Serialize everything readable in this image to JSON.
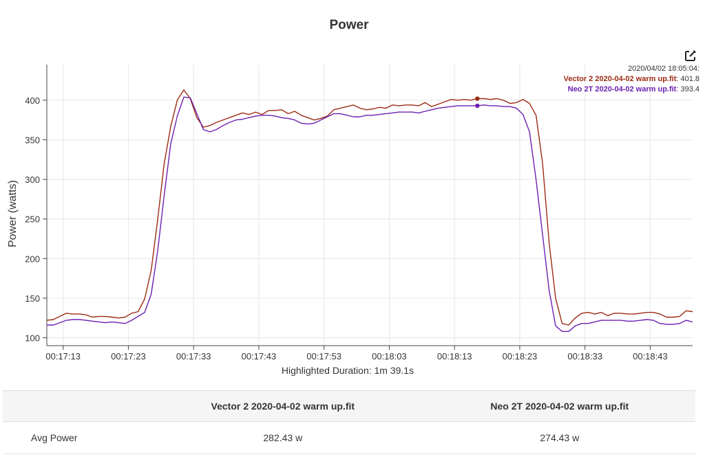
{
  "chart_data": {
    "type": "line",
    "title": "Power",
    "ylabel": "Power (watts)",
    "xlabel": "",
    "ylim": [
      90,
      445
    ],
    "xlim": [
      1030.5,
      1129.5
    ],
    "yticks": [
      100,
      150,
      200,
      250,
      300,
      350,
      400
    ],
    "xticks": [
      1033,
      1043,
      1053,
      1063,
      1073,
      1083,
      1093,
      1103,
      1113,
      1123
    ],
    "xtick_labels": [
      "00:17:13",
      "00:17:23",
      "00:17:33",
      "00:17:43",
      "00:17:53",
      "00:18:03",
      "00:18:13",
      "00:18:23",
      "00:18:33",
      "00:18:43"
    ],
    "grid": true,
    "series": [
      {
        "name": "Vector 2 2020-04-02 warm up.fit",
        "color": "#9b2a12",
        "x": [
          1030.5,
          1031.5,
          1032.5,
          1033.5,
          1034.5,
          1035.5,
          1036.5,
          1037.5,
          1038.5,
          1039.5,
          1040.5,
          1041.5,
          1042.5,
          1043.5,
          1044.5,
          1045.5,
          1046.5,
          1047.5,
          1048.5,
          1049.5,
          1050.5,
          1051.5,
          1052.5,
          1053.5,
          1054.5,
          1055.5,
          1056.5,
          1057.5,
          1058.5,
          1059.5,
          1060.5,
          1061.5,
          1062.5,
          1063.5,
          1064.5,
          1065.5,
          1066.5,
          1067.5,
          1068.5,
          1069.5,
          1070.5,
          1071.5,
          1072.5,
          1073.5,
          1074.5,
          1075.5,
          1076.5,
          1077.5,
          1078.5,
          1079.5,
          1080.5,
          1081.5,
          1082.5,
          1083.5,
          1084.5,
          1085.5,
          1086.5,
          1087.5,
          1088.5,
          1089.5,
          1090.5,
          1091.5,
          1092.5,
          1093.5,
          1094.5,
          1095.5,
          1096.5,
          1097.5,
          1098.5,
          1099.5,
          1100.5,
          1101.5,
          1102.5,
          1103.5,
          1104.5,
          1105.5,
          1106.5,
          1107.5,
          1108.5,
          1109.5,
          1110.5,
          1111.5,
          1112.5,
          1113.5,
          1114.5,
          1115.5,
          1116.5,
          1117.5,
          1118.5,
          1119.5,
          1120.5,
          1121.5,
          1122.5,
          1123.5,
          1124.5,
          1125.5,
          1126.5,
          1127.5,
          1128.5,
          1129.5
        ],
        "values": [
          122,
          123,
          127,
          131,
          130,
          130,
          129,
          126,
          127,
          127,
          126,
          125,
          126,
          131,
          133,
          149,
          185,
          250,
          320,
          367,
          400,
          413,
          402,
          378,
          366,
          368,
          372,
          375,
          378,
          381,
          384,
          382,
          385,
          382,
          387,
          387,
          388,
          383,
          386,
          381,
          378,
          375,
          377,
          380,
          388,
          390,
          392,
          394,
          390,
          388,
          389,
          391,
          390,
          394,
          393,
          394,
          394,
          393,
          397,
          392,
          395,
          398,
          401,
          400,
          401,
          400,
          402,
          402,
          401,
          402,
          400,
          396,
          397,
          401,
          396,
          381,
          320,
          220,
          150,
          118,
          116,
          125,
          131,
          132,
          130,
          132,
          128,
          131,
          131,
          130,
          130,
          131,
          132,
          132,
          130,
          126,
          126,
          127,
          134,
          133
        ]
      },
      {
        "name": "Neo 2T 2020-04-02 warm up.fit",
        "color": "#6a1fb0",
        "x": [
          1030.5,
          1031.5,
          1032.5,
          1033.5,
          1034.5,
          1035.5,
          1036.5,
          1037.5,
          1038.5,
          1039.5,
          1040.5,
          1041.5,
          1042.5,
          1043.5,
          1044.5,
          1045.5,
          1046.5,
          1047.5,
          1048.5,
          1049.5,
          1050.5,
          1051.5,
          1052.5,
          1053.5,
          1054.5,
          1055.5,
          1056.5,
          1057.5,
          1058.5,
          1059.5,
          1060.5,
          1061.5,
          1062.5,
          1063.5,
          1064.5,
          1065.5,
          1066.5,
          1067.5,
          1068.5,
          1069.5,
          1070.5,
          1071.5,
          1072.5,
          1073.5,
          1074.5,
          1075.5,
          1076.5,
          1077.5,
          1078.5,
          1079.5,
          1080.5,
          1081.5,
          1082.5,
          1083.5,
          1084.5,
          1085.5,
          1086.5,
          1087.5,
          1088.5,
          1089.5,
          1090.5,
          1091.5,
          1092.5,
          1093.5,
          1094.5,
          1095.5,
          1096.5,
          1097.5,
          1098.5,
          1099.5,
          1100.5,
          1101.5,
          1102.5,
          1103.5,
          1104.5,
          1105.5,
          1106.5,
          1107.5,
          1108.5,
          1109.5,
          1110.5,
          1111.5,
          1112.5,
          1113.5,
          1114.5,
          1115.5,
          1116.5,
          1117.5,
          1118.5,
          1119.5,
          1120.5,
          1121.5,
          1122.5,
          1123.5,
          1124.5,
          1125.5,
          1126.5,
          1127.5,
          1128.5,
          1129.5
        ],
        "values": [
          116,
          116,
          119,
          122,
          123,
          123,
          122,
          121,
          120,
          119,
          120,
          119,
          118,
          122,
          127,
          132,
          155,
          210,
          280,
          345,
          380,
          404,
          403,
          383,
          363,
          360,
          363,
          368,
          372,
          375,
          376,
          378,
          380,
          381,
          381,
          380,
          378,
          377,
          375,
          371,
          370,
          371,
          375,
          379,
          383,
          383,
          381,
          379,
          379,
          381,
          381,
          382,
          383,
          384,
          385,
          385,
          385,
          384,
          386,
          388,
          390,
          391,
          392,
          393,
          393,
          393,
          393,
          394,
          393,
          393,
          392,
          392,
          390,
          382,
          360,
          300,
          230,
          160,
          115,
          108,
          108,
          115,
          118,
          118,
          120,
          122,
          122,
          122,
          122,
          121,
          121,
          122,
          123,
          122,
          118,
          117,
          117,
          118,
          122,
          120
        ]
      }
    ],
    "highlight": {
      "x": 1096.5,
      "label": "2020/04/02 18:05:04:"
    }
  },
  "tooltip": {
    "time": "2020/04/02 18:05:04:",
    "rows": [
      {
        "name": "Vector 2 2020-04-02 warm up.fit",
        "value": ": 401.8"
      },
      {
        "name": "Neo 2T 2020-04-02 warm up.fit",
        "value": ": 393.4"
      }
    ]
  },
  "duration_label": "Highlighted Duration: 1m 39.1s",
  "summary": {
    "headers": [
      "",
      "Vector 2 2020-04-02 warm up.fit",
      "Neo 2T 2020-04-02 warm up.fit"
    ],
    "rows": [
      {
        "label": "Avg Power",
        "values": [
          "282.43 w",
          "274.43 w"
        ]
      }
    ]
  },
  "icons": {
    "edit": "edit-icon"
  }
}
